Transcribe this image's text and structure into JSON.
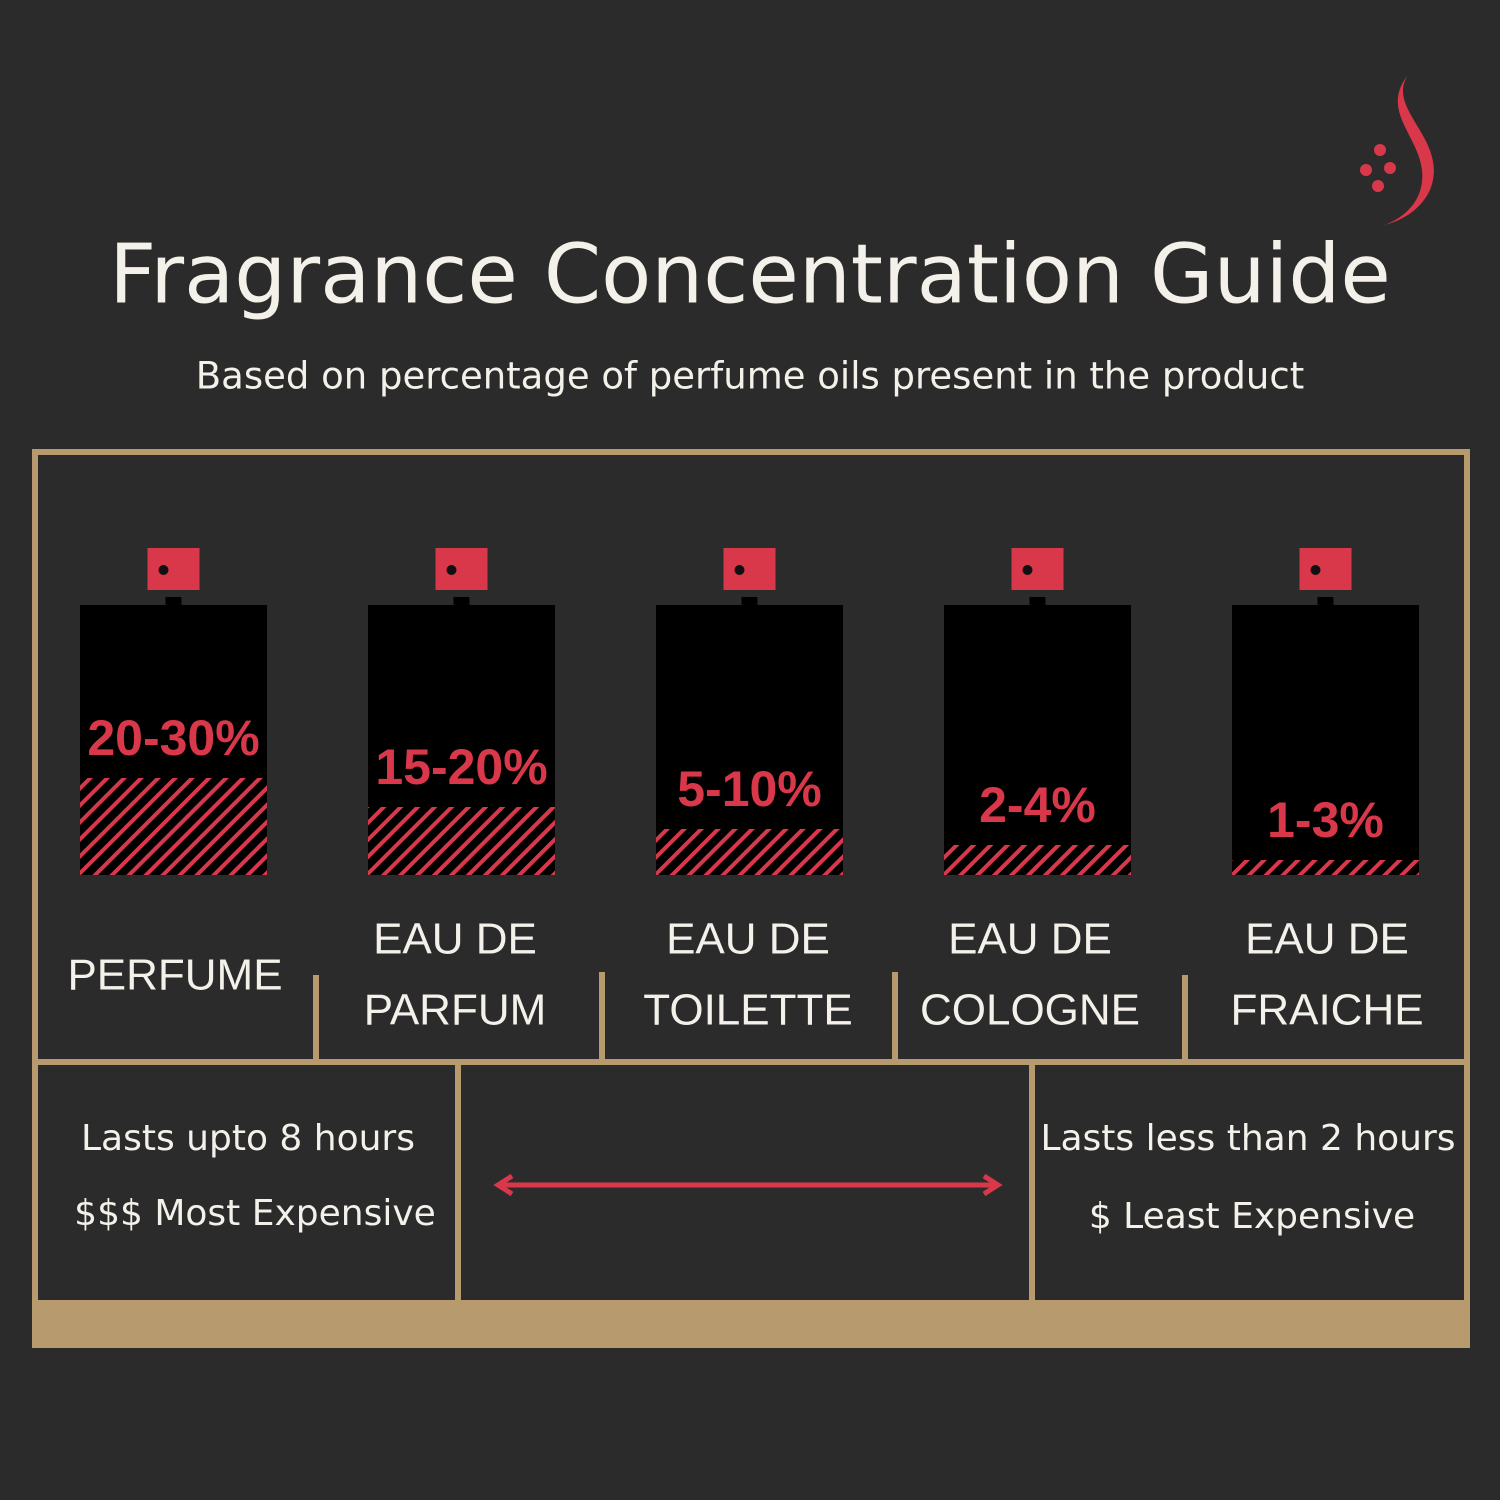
{
  "title": "Fragrance Concentration Guide",
  "subtitle": "Based on percentage of perfume oils present in the product",
  "bottles": [
    {
      "percent": "20-30%",
      "name": [
        "PERFUME"
      ]
    },
    {
      "percent": "15-20%",
      "name": [
        "EAU DE",
        "PARFUM"
      ]
    },
    {
      "percent": "5-10%",
      "name": [
        "EAU DE",
        "TOILETTE"
      ]
    },
    {
      "percent": "2-4%",
      "name": [
        "EAU DE",
        "COLOGNE"
      ]
    },
    {
      "percent": "1-3%",
      "name": [
        "EAU DE",
        "FRAICHE"
      ]
    }
  ],
  "left_notes": [
    "Lasts upto 8 hours",
    "$$$ Most Expensive"
  ],
  "right_notes": [
    "Lasts less than 2 hours",
    "$ Least  Expensive"
  ]
}
